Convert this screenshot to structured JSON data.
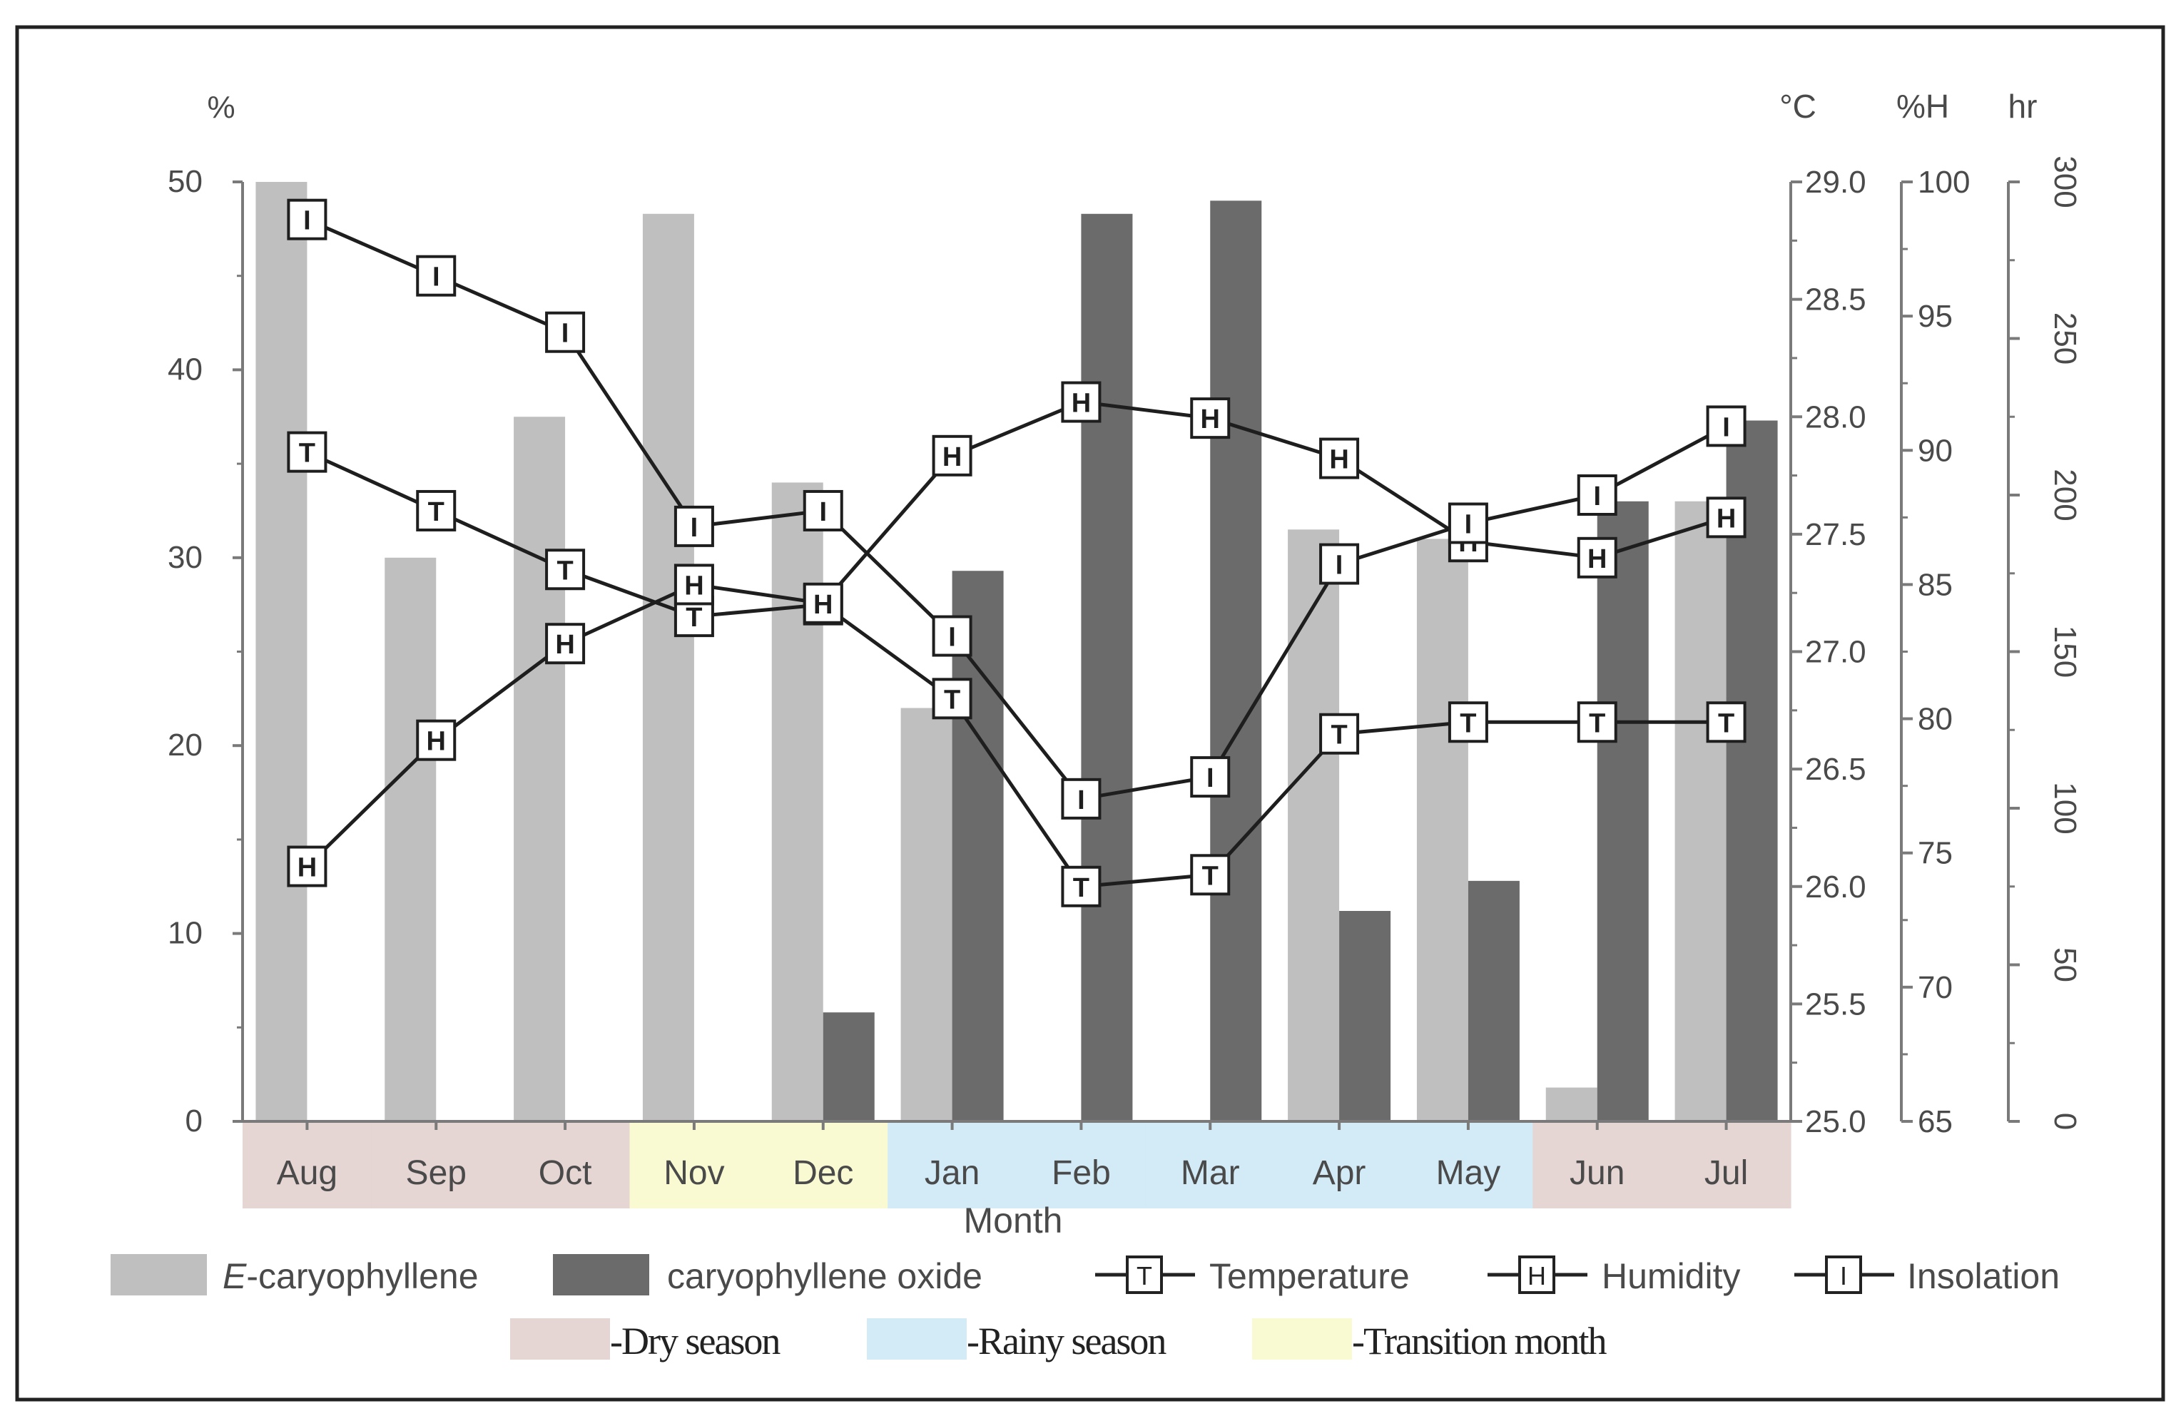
{
  "chart_data": {
    "type": "bar+line",
    "xlabel": "Month",
    "categories": [
      "Aug",
      "Sep",
      "Oct",
      "Nov",
      "Dec",
      "Jan",
      "Feb",
      "Mar",
      "Apr",
      "May",
      "Jun",
      "Jul"
    ],
    "season_of_month": [
      "dry",
      "dry",
      "dry",
      "transition",
      "transition",
      "rainy",
      "rainy",
      "rainy",
      "rainy",
      "rainy",
      "dry",
      "dry"
    ],
    "axes": {
      "left": {
        "label": "%",
        "min": 0,
        "max": 50,
        "ticks": [
          "0",
          "10",
          "20",
          "30",
          "40",
          "50"
        ]
      },
      "temperature": {
        "label": "°C",
        "min": 25.0,
        "max": 29.0,
        "ticks": [
          "25.0",
          "25.5",
          "26.0",
          "26.5",
          "27.0",
          "27.5",
          "28.0",
          "28.5",
          "29.0"
        ]
      },
      "humidity": {
        "label": "%H",
        "min": 65,
        "max": 100,
        "ticks": [
          "65",
          "70",
          "75",
          "80",
          "85",
          "90",
          "95",
          "100"
        ]
      },
      "insolation": {
        "label": "hr",
        "min": 0,
        "max": 300,
        "ticks": [
          "0",
          "50",
          "100",
          "150",
          "200",
          "250",
          "300"
        ]
      }
    },
    "bar_series": [
      {
        "name": "E-caryophyllene",
        "color": "#bfbfbf",
        "values": [
          50.0,
          30.0,
          37.5,
          48.3,
          34.0,
          22.0,
          0,
          0,
          31.5,
          31.0,
          1.8,
          33.0
        ]
      },
      {
        "name": "caryophyllene oxide",
        "color": "#6b6b6b",
        "values": [
          0,
          0,
          0,
          0,
          5.8,
          29.3,
          48.3,
          49.0,
          11.2,
          12.8,
          33.0,
          37.3
        ]
      }
    ],
    "line_series": [
      {
        "name": "Temperature",
        "marker": "T",
        "axis": "temperature",
        "values": [
          27.85,
          27.6,
          27.35,
          27.15,
          27.2,
          26.8,
          26.0,
          26.05,
          26.65,
          26.7,
          26.7,
          26.7
        ]
      },
      {
        "name": "Humidity",
        "marker": "H",
        "axis": "humidity",
        "values": [
          74.5,
          79.2,
          82.8,
          85.0,
          84.3,
          89.8,
          91.8,
          91.2,
          89.7,
          86.6,
          86.0,
          87.5
        ]
      },
      {
        "name": "Insolation",
        "marker": "I",
        "axis": "insolation",
        "values": [
          288,
          270,
          252,
          190,
          195,
          155,
          103,
          110,
          178,
          191,
          200,
          222
        ]
      }
    ],
    "legend": {
      "e_prefix": "E",
      "e_rest": "-caryophyllene",
      "oxide": "caryophyllene oxide",
      "temperature": "Temperature",
      "humidity": "Humidity",
      "insolation": "Insolation",
      "dry": "-Dry season",
      "rainy": "-Rainy season",
      "transition": "-Transition month"
    },
    "season_colors": {
      "dry": "#e5d5d3",
      "rainy": "#d2ebf7",
      "transition": "#fafad2"
    }
  }
}
